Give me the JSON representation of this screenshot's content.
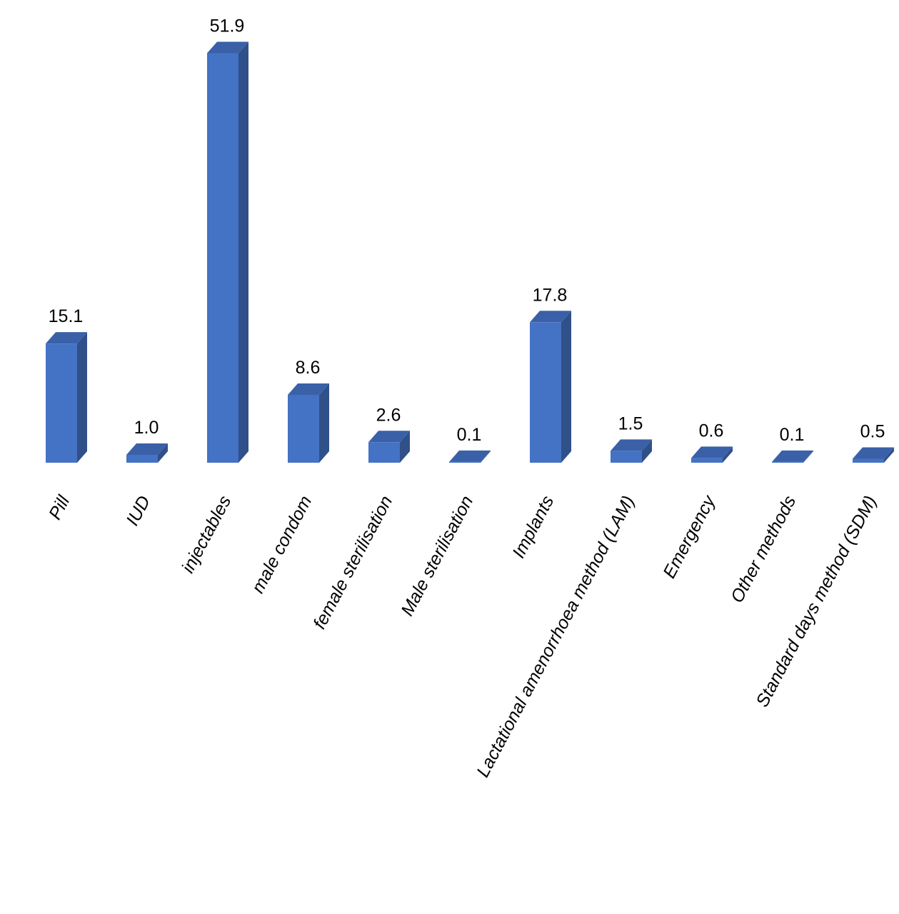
{
  "chart_data": {
    "type": "bar3d",
    "categories": [
      "Pill",
      "IUD",
      "injectables",
      "male condom",
      "female sterilisation",
      "Male sterilisation",
      "Implants",
      "Lactational amenorrhoea method (LAM)",
      "Emergency",
      "Other methods",
      "Standard days method (SDM)"
    ],
    "values": [
      15.1,
      1.0,
      51.9,
      8.6,
      2.6,
      0.1,
      17.8,
      1.5,
      0.6,
      0.1,
      0.5
    ],
    "value_labels": [
      "15.1",
      "1.0",
      "51.9",
      "8.6",
      "2.6",
      "0.1",
      "17.8",
      "1.5",
      "0.6",
      "0.1",
      "0.5"
    ],
    "color": "#4472c4"
  }
}
